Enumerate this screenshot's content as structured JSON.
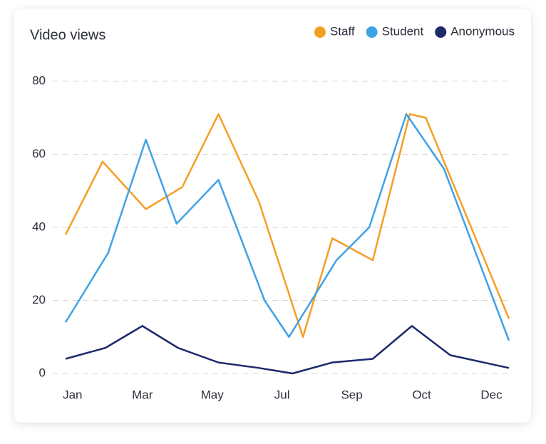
{
  "chart_data": {
    "type": "line",
    "title": "Video views",
    "series": [
      {
        "name": "Staff",
        "color": "#f59e25",
        "x": [
          -0.1,
          0.43,
          1.05,
          1.57,
          2.09,
          2.67,
          3.3,
          3.72,
          4.3,
          4.83,
          5.06,
          6.25
        ],
        "values": [
          38,
          58,
          45,
          51,
          71,
          47,
          10,
          37,
          31,
          71,
          70,
          15
        ]
      },
      {
        "name": "Student",
        "color": "#3ea2e6",
        "x": [
          -0.1,
          0.51,
          1.05,
          1.49,
          2.09,
          2.75,
          3.1,
          3.78,
          4.25,
          4.78,
          5.32,
          6.25
        ],
        "values": [
          14,
          33,
          64,
          41,
          53,
          20,
          10,
          31,
          40,
          71,
          56,
          9
        ]
      },
      {
        "name": "Anonymous",
        "color": "#1d2a6b",
        "x": [
          -0.1,
          0.47,
          1.0,
          1.51,
          2.09,
          2.67,
          3.15,
          3.72,
          4.3,
          4.86,
          5.41,
          6.25
        ],
        "values": [
          4,
          7,
          13,
          7,
          3,
          1.5,
          0,
          3,
          4,
          13,
          5,
          1.5
        ]
      }
    ],
    "xlim": [
      -0.1,
      6.25
    ],
    "xticks": [
      {
        "value": 0,
        "label": "Jan"
      },
      {
        "value": 1,
        "label": "Mar"
      },
      {
        "value": 2,
        "label": "May"
      },
      {
        "value": 3,
        "label": "Jul"
      },
      {
        "value": 4,
        "label": "Sep"
      },
      {
        "value": 5,
        "label": "Oct"
      },
      {
        "value": 6,
        "label": "Dec"
      }
    ],
    "ylim": [
      0,
      80
    ],
    "yticks": [
      0,
      20,
      40,
      60,
      80
    ],
    "grid": true
  }
}
